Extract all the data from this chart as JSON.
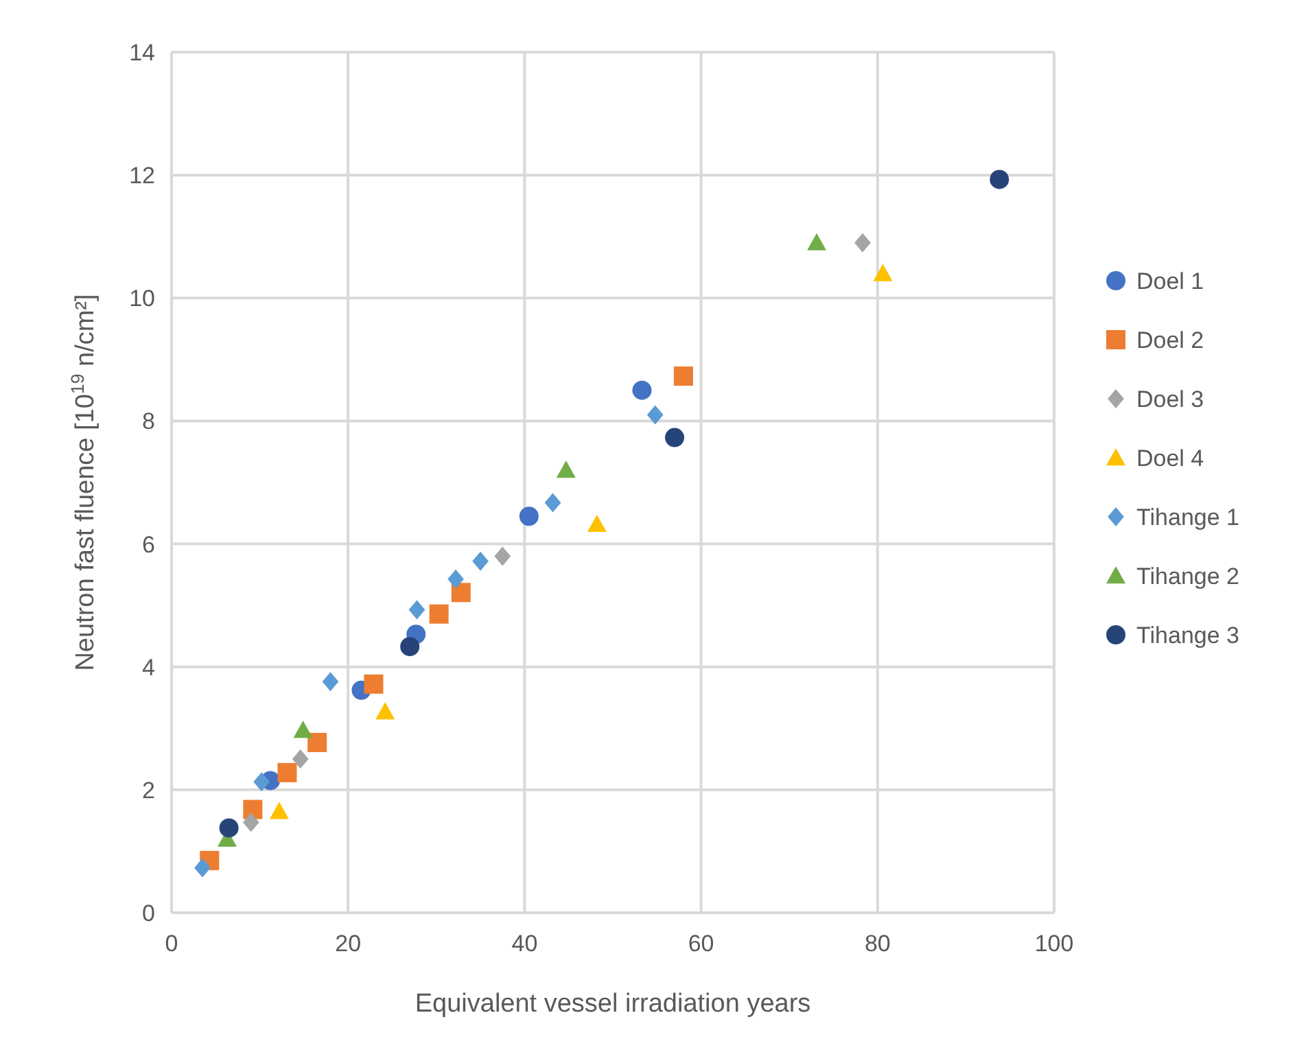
{
  "chart_data": {
    "type": "scatter",
    "xlabel": "Equivalent vessel irradiation years",
    "ylabel": "Neutron fast fluence [10$^{19}$ n/cm²]",
    "xlim": [
      0,
      100
    ],
    "xticks": [
      0,
      20,
      40,
      60,
      80,
      100
    ],
    "ylim": [
      0,
      14
    ],
    "yticks": [
      0,
      2,
      4,
      6,
      8,
      10,
      12,
      14
    ],
    "grid": true,
    "legend": "right",
    "series": [
      {
        "name": "Doel 1",
        "color": "#4472c4",
        "marker": "circle",
        "x": [
          11.2,
          21.5,
          27.7,
          40.5,
          53.3
        ],
        "values": [
          2.15,
          3.62,
          4.53,
          6.45,
          8.5
        ]
      },
      {
        "name": "Doel 2",
        "color": "#ed7d31",
        "marker": "square",
        "x": [
          4.3,
          9.2,
          13.1,
          16.5,
          22.9,
          30.3,
          32.8,
          58
        ],
        "values": [
          0.85,
          1.68,
          2.28,
          2.77,
          3.72,
          4.86,
          5.21,
          8.73
        ]
      },
      {
        "name": "Doel 3",
        "color": "#a5a5a5",
        "marker": "diamond",
        "x": [
          9,
          14.6,
          37.5,
          78.3
        ],
        "values": [
          1.47,
          2.5,
          5.8,
          10.9
        ]
      },
      {
        "name": "Doel 4",
        "color": "#ffc000",
        "marker": "triangle",
        "x": [
          12.2,
          24.2,
          48.2,
          80.6
        ],
        "values": [
          1.65,
          3.27,
          6.32,
          10.4
        ]
      },
      {
        "name": "Tihange 1",
        "color": "#5b9bd5",
        "marker": "diamond",
        "x": [
          3.5,
          10.2,
          18,
          27.8,
          32.2,
          35,
          43.2,
          54.8
        ],
        "values": [
          0.73,
          2.13,
          3.76,
          4.93,
          5.43,
          5.72,
          6.67,
          8.1
        ]
      },
      {
        "name": "Tihange 2",
        "color": "#70ad47",
        "marker": "triangle",
        "x": [
          6.3,
          14.9,
          44.7,
          73.1
        ],
        "values": [
          1.2,
          2.97,
          7.2,
          10.9
        ]
      },
      {
        "name": "Tihange 3",
        "color": "#264478",
        "marker": "circle",
        "x": [
          6.5,
          27,
          57,
          93.8
        ],
        "values": [
          1.38,
          4.33,
          7.73,
          11.93
        ]
      }
    ]
  }
}
